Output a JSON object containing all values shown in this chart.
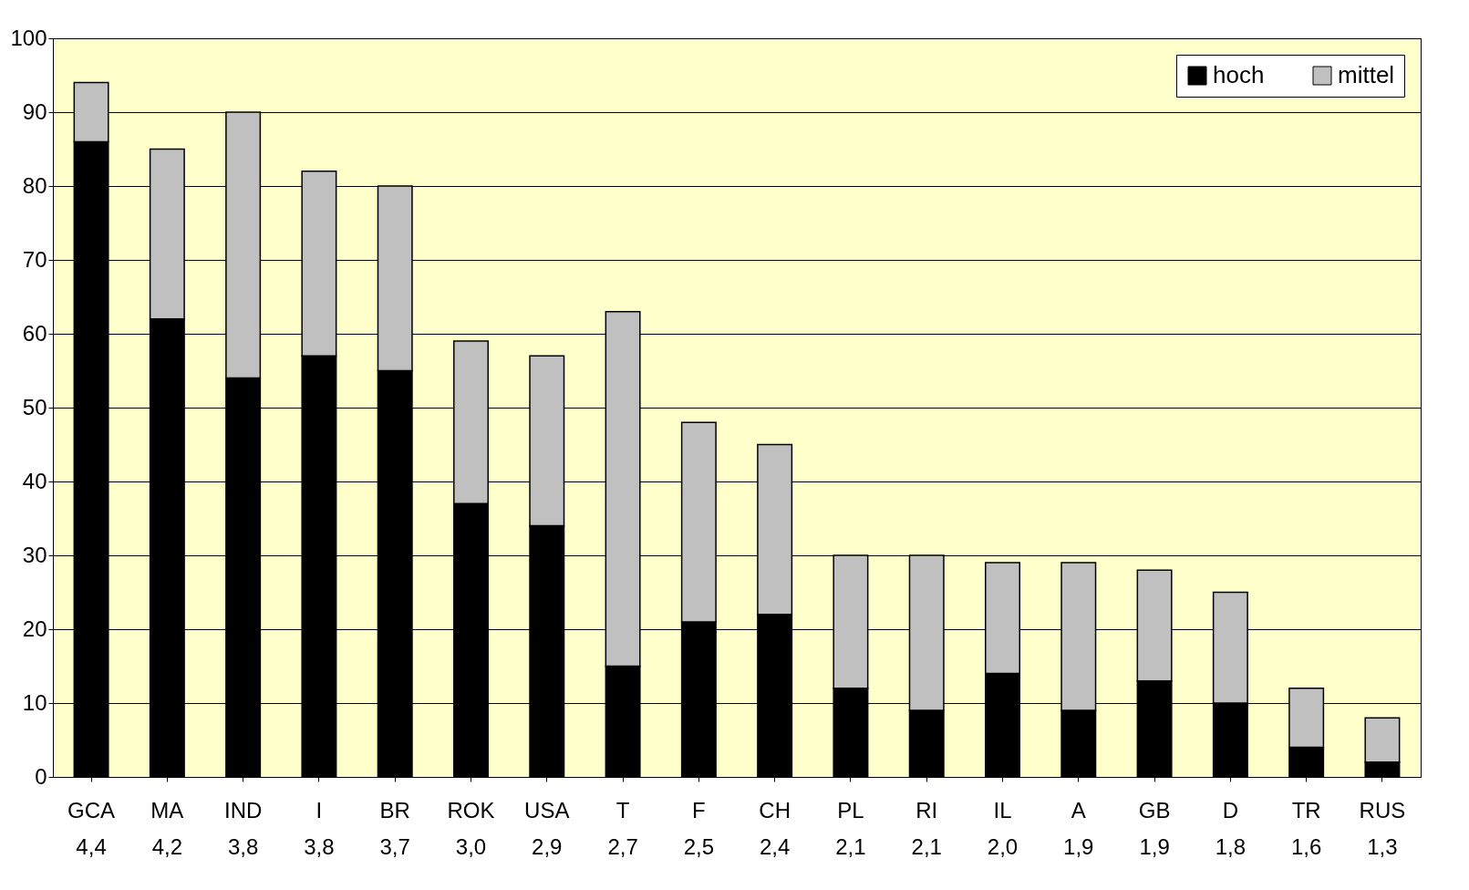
{
  "chart_data": {
    "type": "bar",
    "stacked": true,
    "categories": [
      "GCA\n4,4",
      "MA\n4,2",
      "IND\n3,8",
      "I\n3,8",
      "BR\n3,7",
      "ROK\n3,0",
      "USA\n2,9",
      "T\n2,7",
      "F\n2,5",
      "CH\n2,4",
      "PL\n2,1",
      "RI\n2,1",
      "IL\n2,0",
      "A\n1,9",
      "GB\n1,9",
      "D\n1,8",
      "TR\n1,6",
      "RUS\n1,3"
    ],
    "series": [
      {
        "name": "hoch",
        "color": "#000000",
        "values": [
          86,
          62,
          54,
          57,
          55,
          37,
          34,
          15,
          21,
          22,
          12,
          9,
          14,
          9,
          13,
          10,
          4,
          2
        ]
      },
      {
        "name": "mittel",
        "color": "#c0c0c0",
        "values": [
          8,
          23,
          36,
          25,
          25,
          22,
          23,
          48,
          27,
          23,
          18,
          21,
          15,
          20,
          15,
          15,
          8,
          6
        ]
      }
    ],
    "ylim": [
      0,
      100
    ],
    "yticks": [
      0,
      10,
      20,
      30,
      40,
      50,
      60,
      70,
      80,
      90,
      100
    ],
    "grid": "y",
    "legend": "top right"
  }
}
